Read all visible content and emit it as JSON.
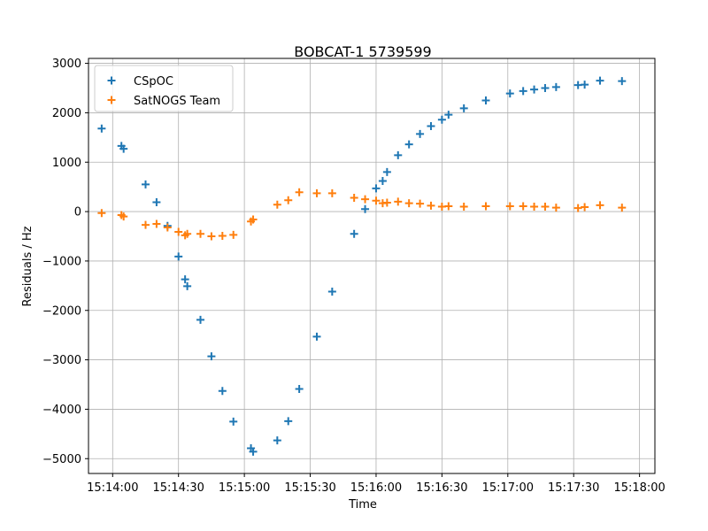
{
  "chart_data": {
    "type": "scatter",
    "title": "BOBCAT-1 5739599",
    "xlabel": "Time",
    "ylabel": "Residuals / Hz",
    "x_ticks": [
      "15:14:00",
      "15:14:30",
      "15:15:00",
      "15:15:30",
      "15:16:00",
      "15:16:30",
      "15:17:00",
      "15:17:30",
      "15:18:00"
    ],
    "y_ticks": [
      -5000,
      -4000,
      -3000,
      -2000,
      -1000,
      0,
      1000,
      2000,
      3000
    ],
    "xlim": [
      "15:13:49",
      "15:18:07"
    ],
    "ylim": [
      -5300,
      3100
    ],
    "grid": true,
    "legend_position": "upper-left",
    "marker": "plus",
    "series": [
      {
        "name": "CSpOC",
        "color": "#1f77b4",
        "points": [
          [
            "15:13:55",
            1680
          ],
          [
            "15:14:04",
            1330
          ],
          [
            "15:14:05",
            1270
          ],
          [
            "15:14:15",
            550
          ],
          [
            "15:14:20",
            190
          ],
          [
            "15:14:25",
            -290
          ],
          [
            "15:14:30",
            -910
          ],
          [
            "15:14:33",
            -1370
          ],
          [
            "15:14:34",
            -1510
          ],
          [
            "15:14:40",
            -2190
          ],
          [
            "15:14:45",
            -2930
          ],
          [
            "15:14:50",
            -3630
          ],
          [
            "15:14:55",
            -4250
          ],
          [
            "15:15:03",
            -4790
          ],
          [
            "15:15:04",
            -4860
          ],
          [
            "15:15:15",
            -4630
          ],
          [
            "15:15:20",
            -4240
          ],
          [
            "15:15:25",
            -3590
          ],
          [
            "15:15:33",
            -2530
          ],
          [
            "15:15:40",
            -1620
          ],
          [
            "15:15:50",
            -450
          ],
          [
            "15:15:55",
            50
          ],
          [
            "15:16:00",
            470
          ],
          [
            "15:16:03",
            620
          ],
          [
            "15:16:05",
            800
          ],
          [
            "15:16:10",
            1140
          ],
          [
            "15:16:15",
            1360
          ],
          [
            "15:16:20",
            1570
          ],
          [
            "15:16:25",
            1730
          ],
          [
            "15:16:30",
            1860
          ],
          [
            "15:16:33",
            1960
          ],
          [
            "15:16:40",
            2090
          ],
          [
            "15:16:50",
            2250
          ],
          [
            "15:17:01",
            2390
          ],
          [
            "15:17:07",
            2440
          ],
          [
            "15:17:12",
            2470
          ],
          [
            "15:17:17",
            2500
          ],
          [
            "15:17:22",
            2520
          ],
          [
            "15:17:32",
            2560
          ],
          [
            "15:17:35",
            2570
          ],
          [
            "15:17:42",
            2650
          ],
          [
            "15:17:52",
            2640
          ]
        ]
      },
      {
        "name": "SatNOGS Team",
        "color": "#ff7f0e",
        "points": [
          [
            "15:13:55",
            -30
          ],
          [
            "15:14:04",
            -70
          ],
          [
            "15:14:05",
            -100
          ],
          [
            "15:14:15",
            -270
          ],
          [
            "15:14:20",
            -250
          ],
          [
            "15:14:25",
            -320
          ],
          [
            "15:14:30",
            -410
          ],
          [
            "15:14:33",
            -480
          ],
          [
            "15:14:34",
            -450
          ],
          [
            "15:14:40",
            -450
          ],
          [
            "15:14:45",
            -500
          ],
          [
            "15:14:50",
            -490
          ],
          [
            "15:14:55",
            -470
          ],
          [
            "15:15:03",
            -200
          ],
          [
            "15:15:04",
            -160
          ],
          [
            "15:15:15",
            140
          ],
          [
            "15:15:20",
            230
          ],
          [
            "15:15:25",
            390
          ],
          [
            "15:15:33",
            370
          ],
          [
            "15:15:40",
            370
          ],
          [
            "15:15:50",
            280
          ],
          [
            "15:15:55",
            250
          ],
          [
            "15:16:00",
            220
          ],
          [
            "15:16:03",
            170
          ],
          [
            "15:16:05",
            180
          ],
          [
            "15:16:10",
            200
          ],
          [
            "15:16:15",
            170
          ],
          [
            "15:16:20",
            160
          ],
          [
            "15:16:25",
            120
          ],
          [
            "15:16:30",
            100
          ],
          [
            "15:16:33",
            110
          ],
          [
            "15:16:40",
            100
          ],
          [
            "15:16:50",
            110
          ],
          [
            "15:17:01",
            110
          ],
          [
            "15:17:07",
            110
          ],
          [
            "15:17:12",
            100
          ],
          [
            "15:17:17",
            100
          ],
          [
            "15:17:22",
            80
          ],
          [
            "15:17:32",
            70
          ],
          [
            "15:17:35",
            90
          ],
          [
            "15:17:42",
            130
          ],
          [
            "15:17:52",
            80
          ]
        ]
      }
    ]
  }
}
